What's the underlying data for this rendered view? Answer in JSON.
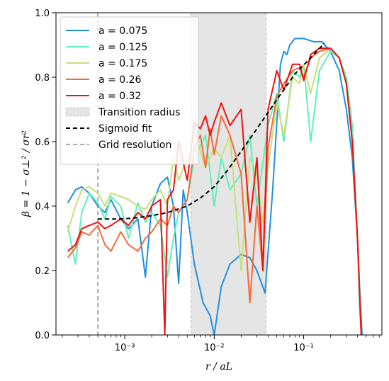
{
  "chart_data": {
    "type": "line",
    "xlabel": "r / aL",
    "ylabel": "β = 1 − σ⊥² / σr²",
    "x_scale": "log",
    "xlim": [
      0.00017,
      0.75
    ],
    "ylim": [
      0.0,
      1.0
    ],
    "x_ticks": [
      {
        "value": 0.001,
        "label": "10⁻³"
      },
      {
        "value": 0.01,
        "label": "10⁻²"
      },
      {
        "value": 0.1,
        "label": "10⁻¹"
      }
    ],
    "y_ticks": [
      {
        "value": 0.0,
        "label": "0.0"
      },
      {
        "value": 0.2,
        "label": "0.2"
      },
      {
        "value": 0.4,
        "label": "0.4"
      },
      {
        "value": 0.6,
        "label": "0.6"
      },
      {
        "value": 0.8,
        "label": "0.8"
      },
      {
        "value": 1.0,
        "label": "1.0"
      }
    ],
    "transition_band": {
      "x0": 0.0055,
      "x1": 0.038,
      "color": "#e5e5e5",
      "label": "Transition radius"
    },
    "grid_resolution": {
      "x": 0.0005,
      "color": "#aaaaaa",
      "label": "Grid resolution"
    },
    "sigmoid_fit": {
      "label": "Sigmoid fit",
      "color": "#000000",
      "x": [
        0.0005,
        0.0008,
        0.0012,
        0.002,
        0.003,
        0.005,
        0.007,
        0.01,
        0.014,
        0.02,
        0.03,
        0.05,
        0.08,
        0.12,
        0.17
      ],
      "y": [
        0.36,
        0.36,
        0.362,
        0.37,
        0.38,
        0.4,
        0.425,
        0.46,
        0.51,
        0.57,
        0.64,
        0.73,
        0.81,
        0.86,
        0.905
      ]
    },
    "series": [
      {
        "name": "a = 0.075",
        "color": "#1f8fe0",
        "x": [
          0.00023,
          0.00028,
          0.00033,
          0.0004,
          0.0005,
          0.0006,
          0.0007,
          0.0009,
          0.0011,
          0.0014,
          0.0017,
          0.002,
          0.0025,
          0.003,
          0.0035,
          0.004,
          0.0045,
          0.005,
          0.006,
          0.0075,
          0.009,
          0.01,
          0.012,
          0.015,
          0.02,
          0.025,
          0.03,
          0.037,
          0.045,
          0.055,
          0.06,
          0.065,
          0.07,
          0.08,
          0.1,
          0.13,
          0.16,
          0.2,
          0.25,
          0.3,
          0.35,
          0.4,
          0.43,
          0.45
        ],
        "y": [
          0.41,
          0.45,
          0.46,
          0.44,
          0.4,
          0.38,
          0.42,
          0.36,
          0.33,
          0.36,
          0.18,
          0.4,
          0.47,
          0.49,
          0.4,
          0.16,
          0.45,
          0.38,
          0.22,
          0.1,
          0.06,
          0.0,
          0.15,
          0.22,
          0.25,
          0.24,
          0.2,
          0.13,
          0.45,
          0.84,
          0.88,
          0.87,
          0.9,
          0.92,
          0.92,
          0.91,
          0.91,
          0.88,
          0.82,
          0.7,
          0.55,
          0.3,
          0.1,
          0.0
        ]
      },
      {
        "name": "a = 0.125",
        "color": "#5ef0b8",
        "x": [
          0.00023,
          0.00028,
          0.00033,
          0.0004,
          0.0005,
          0.0006,
          0.0007,
          0.0009,
          0.0011,
          0.0014,
          0.0017,
          0.002,
          0.0025,
          0.003,
          0.0035,
          0.004,
          0.005,
          0.006,
          0.008,
          0.01,
          0.012,
          0.015,
          0.02,
          0.025,
          0.03,
          0.04,
          0.05,
          0.06,
          0.075,
          0.09,
          0.1,
          0.12,
          0.15,
          0.2,
          0.25,
          0.3,
          0.35,
          0.4,
          0.42,
          0.44
        ],
        "y": [
          0.34,
          0.22,
          0.38,
          0.44,
          0.41,
          0.36,
          0.43,
          0.4,
          0.3,
          0.41,
          0.35,
          0.38,
          0.34,
          0.18,
          0.3,
          0.38,
          0.42,
          0.55,
          0.62,
          0.4,
          0.55,
          0.45,
          0.5,
          0.62,
          0.4,
          0.65,
          0.75,
          0.6,
          0.82,
          0.8,
          0.84,
          0.6,
          0.82,
          0.88,
          0.86,
          0.8,
          0.65,
          0.3,
          0.1,
          0.0
        ]
      },
      {
        "name": "a = 0.175",
        "color": "#c5e07a",
        "x": [
          0.00023,
          0.00028,
          0.00033,
          0.0004,
          0.0005,
          0.0006,
          0.0007,
          0.0009,
          0.0011,
          0.0014,
          0.0017,
          0.002,
          0.0025,
          0.003,
          0.0035,
          0.004,
          0.005,
          0.0065,
          0.008,
          0.01,
          0.012,
          0.015,
          0.02,
          0.025,
          0.03,
          0.035,
          0.04,
          0.05,
          0.06,
          0.075,
          0.09,
          0.1,
          0.12,
          0.15,
          0.2,
          0.25,
          0.3,
          0.35,
          0.4,
          0.44
        ],
        "y": [
          0.32,
          0.4,
          0.45,
          0.46,
          0.44,
          0.4,
          0.44,
          0.43,
          0.42,
          0.4,
          0.39,
          0.42,
          0.45,
          0.4,
          0.55,
          0.48,
          0.55,
          0.6,
          0.52,
          0.58,
          0.55,
          0.62,
          0.2,
          0.55,
          0.5,
          0.35,
          0.52,
          0.72,
          0.62,
          0.8,
          0.78,
          0.84,
          0.75,
          0.86,
          0.89,
          0.86,
          0.78,
          0.6,
          0.3,
          0.0
        ]
      },
      {
        "name": "a = 0.26",
        "color": "#f56a3a",
        "x": [
          0.00023,
          0.00028,
          0.00033,
          0.0004,
          0.0005,
          0.0006,
          0.0007,
          0.0009,
          0.0011,
          0.0014,
          0.0017,
          0.002,
          0.0025,
          0.003,
          0.0035,
          0.004,
          0.005,
          0.006,
          0.007,
          0.008,
          0.009,
          0.01,
          0.012,
          0.015,
          0.02,
          0.025,
          0.03,
          0.035,
          0.04,
          0.05,
          0.06,
          0.075,
          0.09,
          0.1,
          0.12,
          0.15,
          0.2,
          0.25,
          0.3,
          0.35,
          0.4,
          0.44
        ],
        "y": [
          0.24,
          0.27,
          0.32,
          0.31,
          0.34,
          0.28,
          0.26,
          0.32,
          0.28,
          0.26,
          0.3,
          0.32,
          0.36,
          0.34,
          0.4,
          0.38,
          0.42,
          0.58,
          0.62,
          0.52,
          0.64,
          0.56,
          0.68,
          0.62,
          0.5,
          0.1,
          0.4,
          0.2,
          0.58,
          0.74,
          0.78,
          0.82,
          0.83,
          0.8,
          0.86,
          0.88,
          0.89,
          0.86,
          0.78,
          0.6,
          0.3,
          0.0
        ]
      },
      {
        "name": "a = 0.32",
        "color": "#ee1111",
        "x": [
          0.00023,
          0.00028,
          0.00033,
          0.0004,
          0.0005,
          0.0006,
          0.0007,
          0.0009,
          0.0011,
          0.0014,
          0.0017,
          0.002,
          0.0025,
          0.0028,
          0.003,
          0.0035,
          0.004,
          0.005,
          0.006,
          0.007,
          0.008,
          0.009,
          0.01,
          0.012,
          0.015,
          0.02,
          0.025,
          0.03,
          0.035,
          0.04,
          0.05,
          0.06,
          0.075,
          0.09,
          0.1,
          0.12,
          0.15,
          0.2,
          0.25,
          0.3,
          0.35,
          0.4,
          0.44
        ],
        "y": [
          0.26,
          0.28,
          0.33,
          0.34,
          0.35,
          0.33,
          0.34,
          0.36,
          0.34,
          0.38,
          0.36,
          0.4,
          0.42,
          0.0,
          0.42,
          0.45,
          0.6,
          0.48,
          0.66,
          0.64,
          0.68,
          0.62,
          0.66,
          0.72,
          0.65,
          0.7,
          0.35,
          0.55,
          0.2,
          0.7,
          0.82,
          0.76,
          0.84,
          0.84,
          0.79,
          0.87,
          0.89,
          0.89,
          0.86,
          0.78,
          0.6,
          0.3,
          0.0
        ]
      }
    ]
  }
}
